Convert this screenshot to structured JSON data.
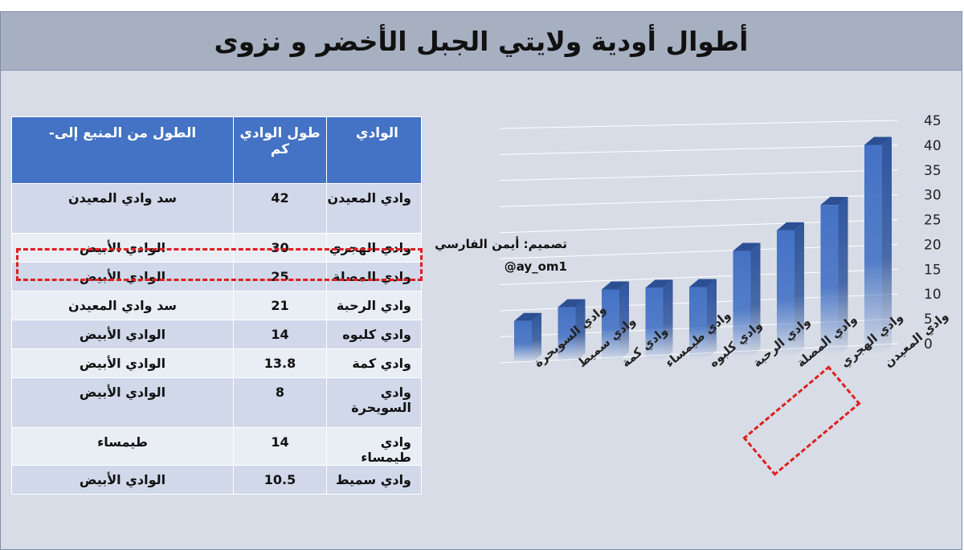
{
  "title": "أطوال أودية ولايتي الجبل الأخضر و نزوى",
  "table": {
    "headers": {
      "wadi": "الوادي",
      "length": "طول الوادي كم",
      "source": "الطول من المنبع إلى-"
    },
    "rows": [
      {
        "wadi": "وادي المعيدن",
        "length": "42",
        "source": "سد وادي المعيدن"
      },
      {
        "wadi": "وادي الهجري",
        "length": "30",
        "source": "الوادي الأبيض"
      },
      {
        "wadi": "وادي المصلة",
        "length": "25",
        "source": "الوادي الأبيض"
      },
      {
        "wadi": "وادي الرحبة",
        "length": "21",
        "source": "سد وادي المعيدن"
      },
      {
        "wadi": "وادي كلبوه",
        "length": "14",
        "source": "الوادي الأبيض"
      },
      {
        "wadi": "وادي كمة",
        "length": "13.8",
        "source": "الوادي الأبيض"
      },
      {
        "wadi": "وادي السويحرة",
        "length": "8",
        "source": "الوادي الأبيض"
      },
      {
        "wadi": "وادي طيمساء",
        "length": "14",
        "source": "طيمساء"
      },
      {
        "wadi": "وادي سميط",
        "length": "10.5",
        "source": "الوادي الأبيض"
      }
    ]
  },
  "credit": {
    "line1": "تصميم:  أيمن الفارسي",
    "line2": "@ay_om1"
  },
  "chart_data": {
    "type": "bar",
    "categories": [
      "وادي السويحرة",
      "وادي سميط",
      "وادي كمة",
      "وادي طيمساء",
      "وادي كلبوه",
      "وادي الرحبة",
      "وادي المصلة",
      "وادي الهجري",
      "وادي المعيدن"
    ],
    "values": [
      8,
      10.5,
      13.8,
      14,
      14,
      21,
      25,
      30,
      42
    ],
    "yticks": [
      "0",
      "5",
      "10",
      "15",
      "20",
      "25",
      "30",
      "35",
      "40",
      "45"
    ],
    "ylim": [
      0,
      45
    ],
    "grid": true,
    "style": "3d-column",
    "color": "#4472c4"
  },
  "colors": {
    "bar": "#4472c4",
    "header": "#4472c4",
    "highlight": "#e01e1e",
    "title_bar": "#a7b0c1",
    "background": "#d7dce6"
  }
}
